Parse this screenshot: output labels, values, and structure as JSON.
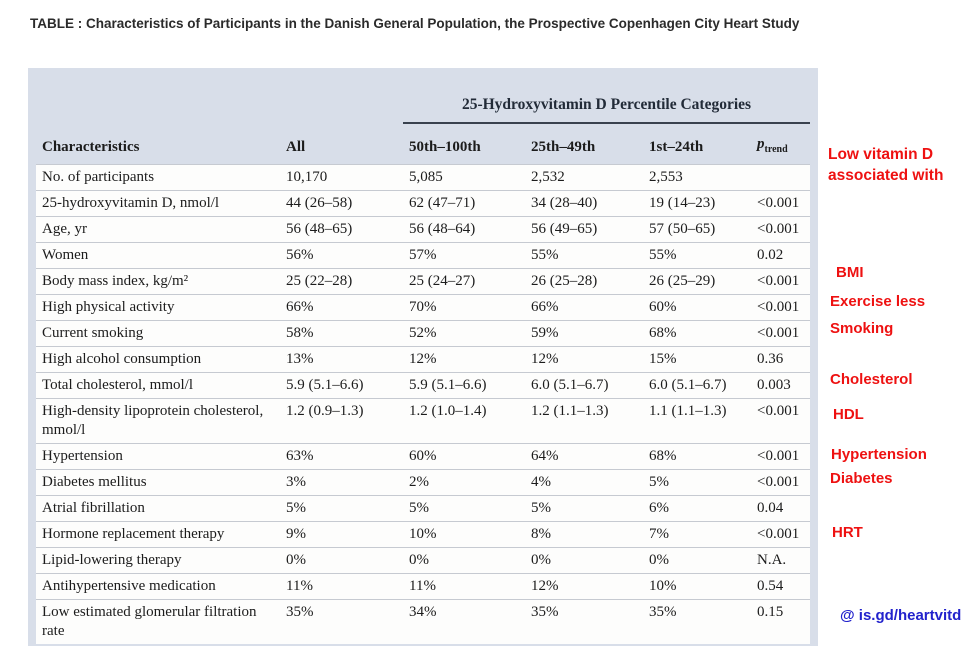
{
  "title": "TABLE : Characteristics of Participants in the Danish General Population, the Prospective Copenhagen City Heart Study",
  "table": {
    "group_header": "25-Hydroxyvitamin D Percentile Categories",
    "columns": [
      "Characteristics",
      "All",
      "50th–100th",
      "25th–49th",
      "1st–24th"
    ],
    "p_header": {
      "symbol": "p",
      "subscript": "trend"
    },
    "rows": [
      {
        "label": "No. of participants",
        "cells": [
          "10,170",
          "5,085",
          "2,532",
          "2,553",
          ""
        ]
      },
      {
        "label": "25-hydroxyvitamin D, nmol/l",
        "cells": [
          "44 (26–58)",
          "62 (47–71)",
          "34 (28–40)",
          "19 (14–23)",
          "<0.001"
        ]
      },
      {
        "label": "Age, yr",
        "cells": [
          "56 (48–65)",
          "56 (48–64)",
          "56 (49–65)",
          "57 (50–65)",
          "<0.001"
        ]
      },
      {
        "label": "Women",
        "cells": [
          "56%",
          "57%",
          "55%",
          "55%",
          "0.02"
        ]
      },
      {
        "label": "Body mass index, kg/m²",
        "cells": [
          "25 (22–28)",
          "25 (24–27)",
          "26 (25–28)",
          "26 (25–29)",
          "<0.001"
        ]
      },
      {
        "label": "High physical activity",
        "cells": [
          "66%",
          "70%",
          "66%",
          "60%",
          "<0.001"
        ]
      },
      {
        "label": "Current smoking",
        "cells": [
          "58%",
          "52%",
          "59%",
          "68%",
          "<0.001"
        ]
      },
      {
        "label": "High alcohol consumption",
        "cells": [
          "13%",
          "12%",
          "12%",
          "15%",
          "0.36"
        ]
      },
      {
        "label": "Total cholesterol, mmol/l",
        "cells": [
          "5.9 (5.1–6.6)",
          "5.9 (5.1–6.6)",
          "6.0 (5.1–6.7)",
          "6.0 (5.1–6.7)",
          "0.003"
        ]
      },
      {
        "label": "High-density lipoprotein cholesterol, mmol/l",
        "cells": [
          "1.2 (0.9–1.3)",
          "1.2 (1.0–1.4)",
          "1.2 (1.1–1.3)",
          "1.1 (1.1–1.3)",
          "<0.001"
        ]
      },
      {
        "label": "Hypertension",
        "cells": [
          "63%",
          "60%",
          "64%",
          "68%",
          "<0.001"
        ]
      },
      {
        "label": "Diabetes mellitus",
        "cells": [
          "3%",
          "2%",
          "4%",
          "5%",
          "<0.001"
        ]
      },
      {
        "label": "Atrial fibrillation",
        "cells": [
          "5%",
          "5%",
          "5%",
          "6%",
          "0.04"
        ]
      },
      {
        "label": "Hormone replacement therapy",
        "cells": [
          "9%",
          "10%",
          "8%",
          "7%",
          "<0.001"
        ]
      },
      {
        "label": "Lipid-lowering therapy",
        "cells": [
          "0%",
          "0%",
          "0%",
          "0%",
          "N.A."
        ]
      },
      {
        "label": "Antihypertensive medication",
        "cells": [
          "11%",
          "11%",
          "12%",
          "10%",
          "0.54"
        ]
      },
      {
        "label": "Low estimated glomerular filtration rate",
        "cells": [
          "35%",
          "34%",
          "35%",
          "35%",
          "0.15"
        ]
      }
    ]
  },
  "annotations": {
    "heading": "Low vitamin D associated with",
    "items": [
      "BMI",
      "Exercise less",
      "Smoking",
      "Cholesterol",
      "HDL",
      "Hypertension",
      "Diabetes",
      "HRT"
    ],
    "link": "@ is.gd/heartvitd"
  },
  "colors": {
    "annotation_red": "#ee1111",
    "link_blue": "#2222cc",
    "table_background": "#d8dee9",
    "row_background": "#fdfdfc"
  }
}
